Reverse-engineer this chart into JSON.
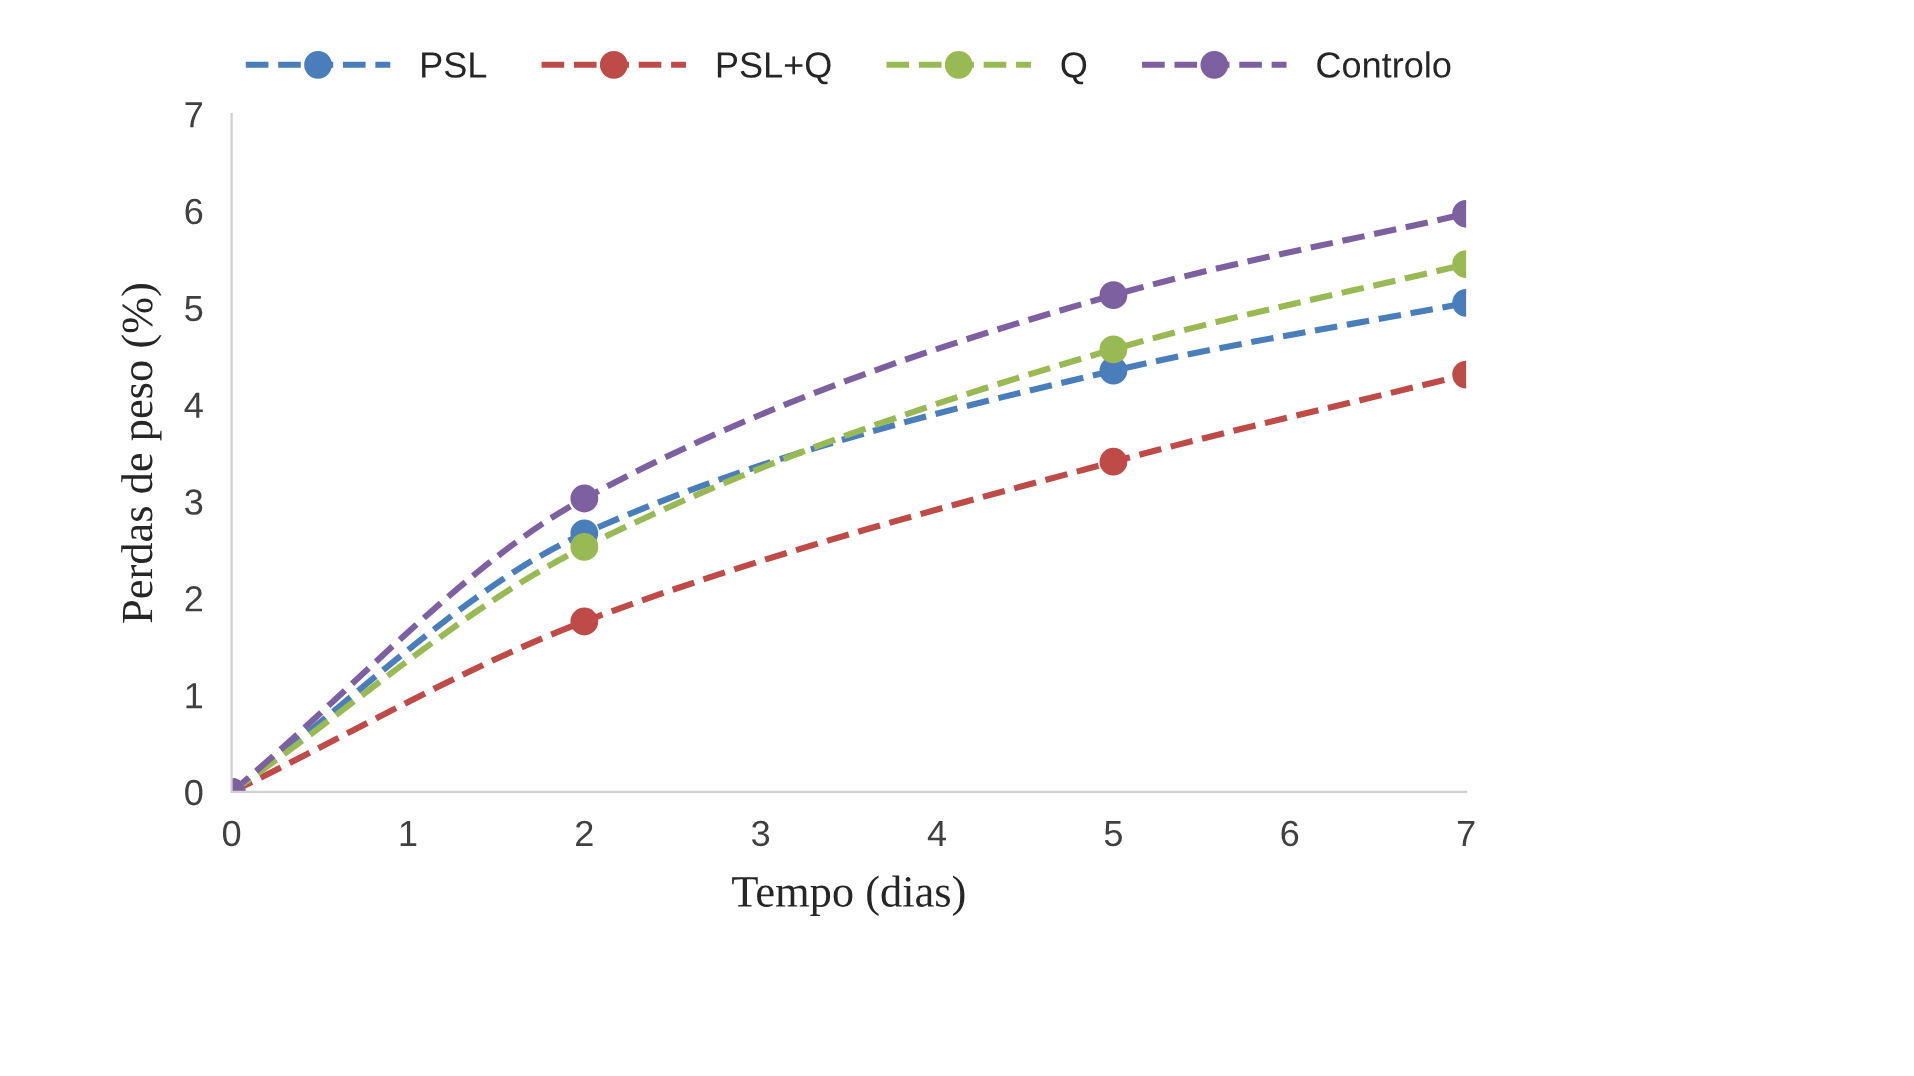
{
  "chart_data": {
    "type": "line",
    "xlabel": "Tempo (dias)",
    "ylabel": "Perdas de peso (%)",
    "x": [
      0,
      2,
      5,
      7
    ],
    "series": [
      {
        "name": "PSL",
        "color": "#4a7ebb",
        "values": [
          0,
          2.67,
          4.35,
          5.05
        ]
      },
      {
        "name": "PSL+Q",
        "color": "#be4b48",
        "values": [
          0,
          1.76,
          3.41,
          4.31
        ]
      },
      {
        "name": "Q",
        "color": "#98b954",
        "values": [
          0,
          2.53,
          4.57,
          5.45
        ]
      },
      {
        "name": "Controlo",
        "color": "#7d60a0",
        "values": [
          0,
          3.03,
          5.13,
          5.97
        ]
      }
    ],
    "xlim": [
      0,
      7
    ],
    "xticks": [
      0,
      1,
      2,
      3,
      4,
      5,
      6,
      7
    ],
    "ylim": [
      0,
      7
    ],
    "yticks": [
      0,
      1,
      2,
      3,
      4,
      5,
      6,
      7
    ],
    "grid": false,
    "legend": "top",
    "marker": "circle",
    "line_style": "dashed"
  }
}
